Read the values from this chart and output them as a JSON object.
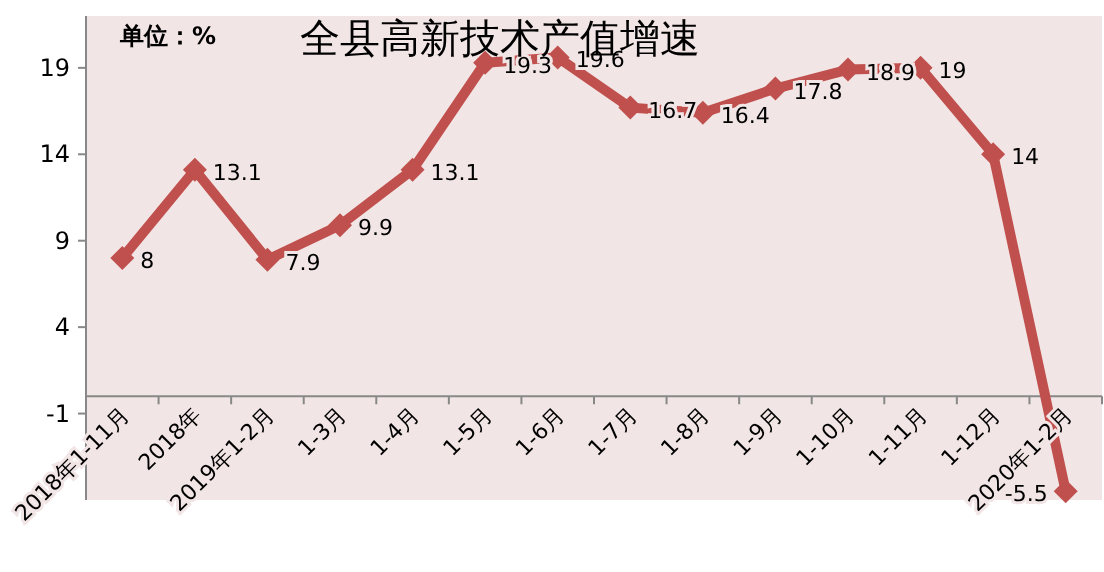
{
  "chart_data": {
    "type": "line",
    "title": "全县高新技术产值增速",
    "annotations": [
      "单位：%"
    ],
    "categories": [
      "2018年1-11月",
      "2018年",
      "2019年1-2月",
      "1-3月",
      "1-4月",
      "1-5月",
      "1-6月",
      "1-7月",
      "1-8月",
      "1-9月",
      "1-10月",
      "1-11月",
      "1-12月",
      "2020年1-2月"
    ],
    "series": [
      {
        "color": "#c0504d",
        "values": [
          8,
          13.1,
          7.9,
          9.9,
          13.1,
          19.3,
          19.6,
          16.7,
          16.4,
          17.8,
          18.9,
          19,
          14,
          -5.5
        ]
      }
    ],
    "ylim": [
      -6,
      22
    ],
    "yticks": [
      -1,
      4,
      9,
      14,
      19
    ],
    "marker": "diamond",
    "data_labels": true
  }
}
